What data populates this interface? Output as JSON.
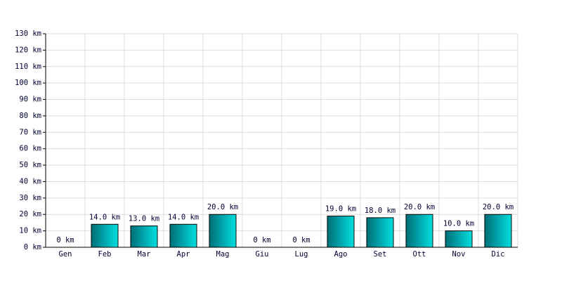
{
  "chart_data": {
    "type": "bar",
    "categories": [
      "Gen",
      "Feb",
      "Mar",
      "Apr",
      "Mag",
      "Giu",
      "Lug",
      "Ago",
      "Set",
      "Ott",
      "Nov",
      "Dic"
    ],
    "values": [
      0,
      14,
      13,
      14,
      20,
      0,
      0,
      19,
      18,
      20,
      10,
      20
    ],
    "value_labels": [
      "0 km",
      "14.0 km",
      "13.0 km",
      "14.0 km",
      "20.0 km",
      "0 km",
      "0 km",
      "19.0 km",
      "18.0 km",
      "20.0 km",
      "10.0 km",
      "20.0 km"
    ],
    "color": "#00e0e0",
    "ylim": [
      0,
      130
    ],
    "yticks": [
      {
        "value": 0,
        "label": "0 km"
      },
      {
        "value": 10,
        "label": "10 km"
      },
      {
        "value": 20,
        "label": "20 km"
      },
      {
        "value": 30,
        "label": "30 km"
      },
      {
        "value": 40,
        "label": "40 km"
      },
      {
        "value": 50,
        "label": "50 km"
      },
      {
        "value": 60,
        "label": "60 km"
      },
      {
        "value": 70,
        "label": "70 km"
      },
      {
        "value": 80,
        "label": "80 km"
      },
      {
        "value": 90,
        "label": "90 km"
      },
      {
        "value": 100,
        "label": "100 km"
      },
      {
        "value": 110,
        "label": "110 km"
      },
      {
        "value": 120,
        "label": "120 km"
      },
      {
        "value": 130,
        "label": "130 km"
      }
    ],
    "grid": true
  }
}
